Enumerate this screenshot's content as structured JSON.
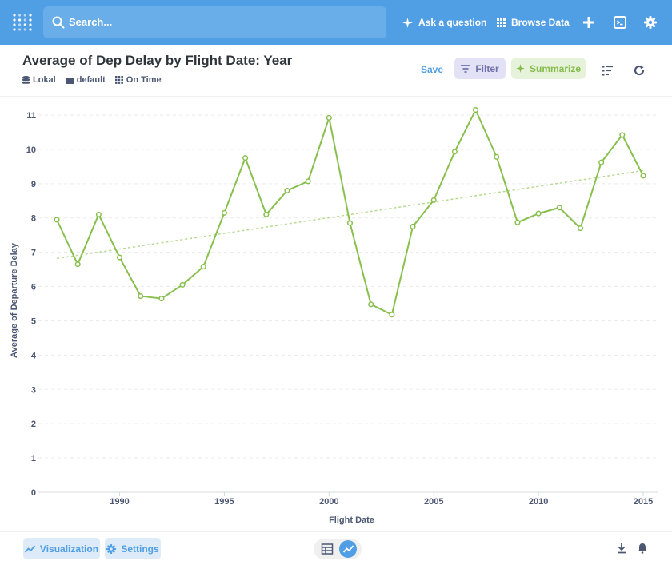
{
  "topbar": {
    "search_placeholder": "Search...",
    "ask_label": "Ask a question",
    "browse_label": "Browse Data",
    "icons": [
      "metabase-logo-icon",
      "search-icon",
      "sparkle-icon",
      "grid-icon",
      "plus-icon",
      "terminal-icon",
      "gear-icon"
    ]
  },
  "header": {
    "title": "Average of Dep Delay by Flight Date: Year",
    "breadcrumbs": [
      "Lokal",
      "default",
      "On Time"
    ],
    "save_label": "Save",
    "filter_label": "Filter",
    "summarize_label": "Summarize"
  },
  "footer": {
    "visualization_label": "Visualization",
    "settings_label": "Settings"
  },
  "colors": {
    "brand": "#509ee3",
    "line": "#88bf4d",
    "filter": "#7172ad"
  },
  "chart_data": {
    "type": "line",
    "xlabel": "Flight Date",
    "ylabel": "Average of Departure Delay",
    "x": [
      1987,
      1988,
      1989,
      1990,
      1991,
      1992,
      1993,
      1994,
      1995,
      1996,
      1997,
      1998,
      1999,
      2000,
      2001,
      2002,
      2003,
      2004,
      2005,
      2006,
      2007,
      2008,
      2009,
      2010,
      2011,
      2012,
      2013,
      2014,
      2015
    ],
    "series": [
      {
        "values": [
          7.95,
          6.65,
          8.1,
          6.85,
          5.72,
          5.65,
          6.05,
          6.58,
          8.15,
          9.75,
          8.1,
          8.8,
          9.07,
          10.92,
          7.85,
          5.48,
          5.18,
          7.75,
          8.52,
          9.93,
          11.15,
          9.78,
          7.87,
          8.13,
          8.3,
          7.7,
          9.62,
          10.42,
          9.23
        ]
      }
    ],
    "trendline": {
      "start": 6.82,
      "end": 9.38
    },
    "xticks": [
      1990,
      1995,
      2000,
      2005,
      2010,
      2015
    ],
    "yticks": [
      0,
      1,
      2,
      3,
      4,
      5,
      6,
      7,
      8,
      9,
      10,
      11
    ],
    "xlim": [
      1987,
      2015
    ],
    "ylim": [
      0,
      11.5
    ],
    "grid": "horizontal"
  }
}
